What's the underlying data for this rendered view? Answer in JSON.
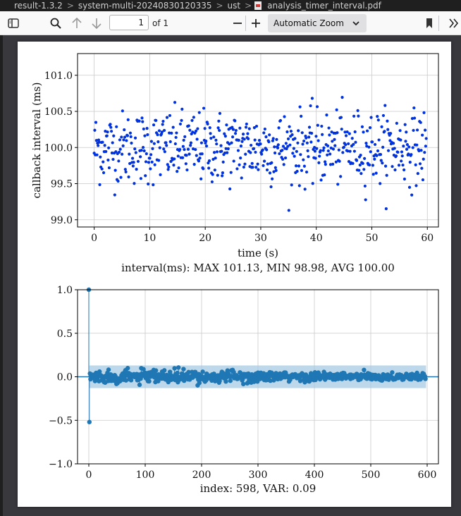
{
  "breadcrumb": {
    "items": [
      "result-1.3.2",
      "system-multi-20240830120335",
      "ust",
      "analysis_timer_interval.pdf"
    ],
    "separator": ">"
  },
  "toolbar": {
    "page_number": "1",
    "page_count": "of 1",
    "zoom": "Automatic Zoom"
  },
  "plot1": {
    "xlabel": "time (s)",
    "ylabel": "callback interval (ms)",
    "summary": "interval(ms): MAX 101.13, MIN 98.98, AVG 100.00",
    "xticks": [
      "0",
      "10",
      "20",
      "30",
      "40",
      "50",
      "60"
    ],
    "yticks": [
      "99.0",
      "99.5",
      "100.0",
      "100.5",
      "101.0"
    ],
    "color": "#0033dd"
  },
  "plot2": {
    "caption": "index: 598, VAR: 0.09",
    "xticks": [
      "0",
      "100",
      "200",
      "300",
      "400",
      "500",
      "600"
    ],
    "yticks": [
      "−1.0",
      "−0.5",
      "0.0",
      "0.5",
      "1.0"
    ],
    "color": "#1f77b4",
    "band_color": "#a6cbe3"
  },
  "chart_data": [
    {
      "type": "scatter",
      "title": "",
      "xlabel": "time (s)",
      "ylabel": "callback interval (ms)",
      "xlim": [
        -3,
        62
      ],
      "ylim": [
        98.9,
        101.3
      ],
      "grid": true,
      "summary": "interval(ms): MAX 101.13, MIN 98.98, AVG 100.00",
      "n_points": 598,
      "stats": {
        "max": 101.13,
        "min": 98.98,
        "avg": 100.0
      }
    },
    {
      "type": "line",
      "title": "",
      "xlabel": "",
      "ylabel": "",
      "xlim": [
        -20,
        620
      ],
      "ylim": [
        -1.0,
        1.0
      ],
      "grid": true,
      "caption": "index: 598, VAR: 0.09",
      "lag0_value": 1.0,
      "lag1_value": -0.52,
      "confidence_band": [
        -0.13,
        0.13
      ],
      "n_lags": 598
    }
  ]
}
